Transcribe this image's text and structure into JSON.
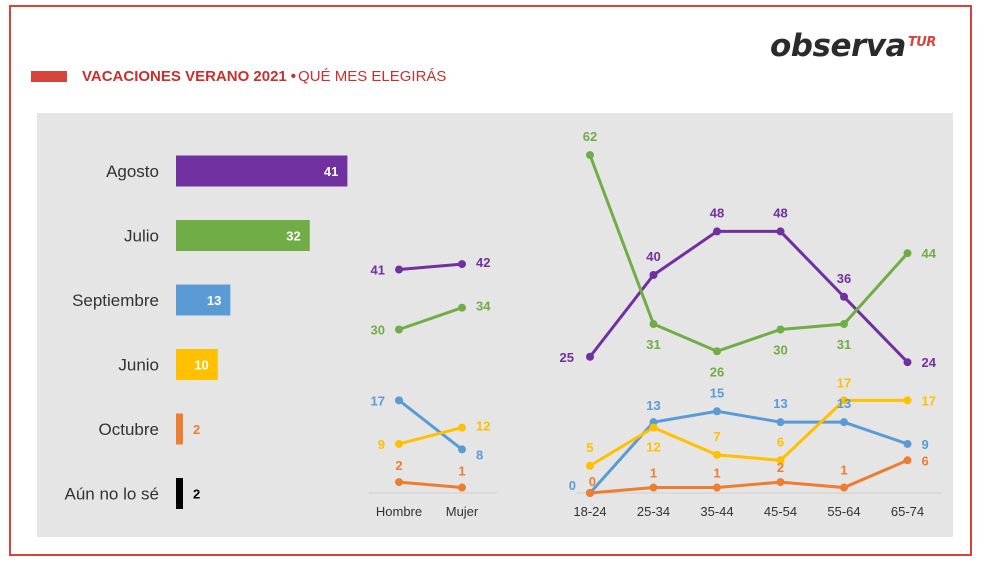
{
  "header": {
    "logo_main": "observa",
    "logo_sub": "TUR",
    "title_bold": "VACACIONES VERANO 2021",
    "title_sep": "•",
    "title_light": "QUÉ MES ELEGIRÁS"
  },
  "colors": {
    "accent": "#d6433c",
    "agosto": "#7030a0",
    "julio": "#70ad47",
    "septiembre": "#5b9bd5",
    "junio": "#ffc000",
    "octubre": "#ed7d31",
    "no_se": "#000000"
  },
  "chart_data": [
    {
      "type": "bar",
      "orientation": "horizontal",
      "categories": [
        "Agosto",
        "Julio",
        "Septiembre",
        "Junio",
        "Octubre",
        "Aún no lo sé"
      ],
      "values": [
        41,
        32,
        13,
        10,
        2,
        2
      ],
      "colors": [
        "#7030a0",
        "#70ad47",
        "#5b9bd5",
        "#ffc000",
        "#ed7d31",
        "#000000"
      ]
    },
    {
      "type": "line",
      "x": [
        "Hombre",
        "Mujer"
      ],
      "series": [
        {
          "name": "Agosto",
          "color": "#7030a0",
          "values": [
            41,
            42
          ]
        },
        {
          "name": "Julio",
          "color": "#70ad47",
          "values": [
            30,
            34
          ]
        },
        {
          "name": "Septiembre",
          "color": "#5b9bd5",
          "values": [
            17,
            8
          ]
        },
        {
          "name": "Junio",
          "color": "#ffc000",
          "values": [
            9,
            12
          ]
        },
        {
          "name": "Octubre",
          "color": "#ed7d31",
          "values": [
            2,
            1
          ]
        }
      ]
    },
    {
      "type": "line",
      "x": [
        "18-24",
        "25-34",
        "35-44",
        "45-54",
        "55-64",
        "65-74"
      ],
      "series": [
        {
          "name": "Agosto",
          "color": "#7030a0",
          "values": [
            25,
            40,
            48,
            48,
            36,
            24
          ]
        },
        {
          "name": "Julio",
          "color": "#70ad47",
          "values": [
            62,
            31,
            26,
            30,
            31,
            44
          ]
        },
        {
          "name": "Septiembre",
          "color": "#5b9bd5",
          "values": [
            0,
            13,
            15,
            13,
            13,
            9
          ]
        },
        {
          "name": "Junio",
          "color": "#ffc000",
          "values": [
            5,
            12,
            7,
            6,
            17,
            17
          ]
        },
        {
          "name": "Octubre",
          "color": "#ed7d31",
          "values": [
            0,
            1,
            1,
            2,
            1,
            6
          ]
        }
      ]
    }
  ]
}
